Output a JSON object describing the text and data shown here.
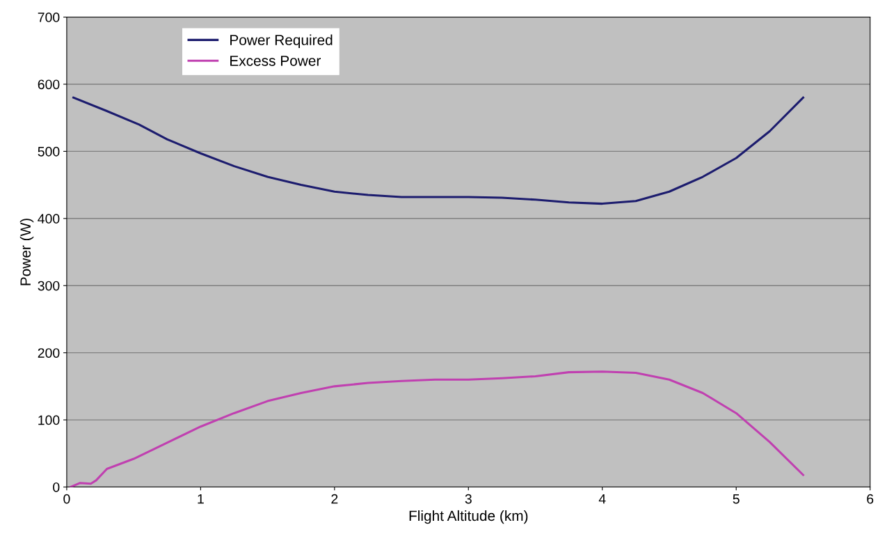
{
  "chart_data": {
    "type": "line",
    "xlabel": "Flight Altitude (km)",
    "ylabel": "Power (W)",
    "xlim": [
      0,
      6
    ],
    "xticks": [
      0,
      1,
      2,
      3,
      4,
      5,
      6
    ],
    "ylim": [
      0,
      700
    ],
    "yticks": [
      0,
      100,
      200,
      300,
      400,
      500,
      600,
      700
    ],
    "grid": "y",
    "legend": "top left",
    "marker": "none",
    "line_style": "solid",
    "series": [
      {
        "name": "Power Required",
        "color": "#1c1c6e",
        "x": [
          0.05,
          0.3,
          0.54,
          0.75,
          1.0,
          1.25,
          1.5,
          1.75,
          2.0,
          2.25,
          2.5,
          2.75,
          3.0,
          3.25,
          3.5,
          3.75,
          4.0,
          4.25,
          4.5,
          4.75,
          5.0,
          5.25,
          5.5
        ],
        "values": [
          580,
          560,
          540,
          518,
          497,
          478,
          462,
          450,
          440,
          435,
          432,
          432,
          432,
          431,
          428,
          424,
          422,
          426,
          440,
          462,
          490,
          530,
          580
        ]
      },
      {
        "name": "Excess Power",
        "color": "#c040b0",
        "x": [
          0.03,
          0.1,
          0.18,
          0.22,
          0.3,
          0.5,
          0.75,
          1.0,
          1.25,
          1.5,
          1.75,
          2.0,
          2.25,
          2.5,
          2.75,
          3.0,
          3.25,
          3.5,
          3.75,
          4.0,
          4.25,
          4.5,
          4.75,
          5.0,
          5.25,
          5.5
        ],
        "values": [
          0,
          6,
          5,
          10,
          27,
          42,
          66,
          90,
          110,
          128,
          140,
          150,
          155,
          158,
          160,
          160,
          162,
          165,
          171,
          172,
          170,
          160,
          140,
          110,
          67,
          18
        ]
      }
    ]
  }
}
